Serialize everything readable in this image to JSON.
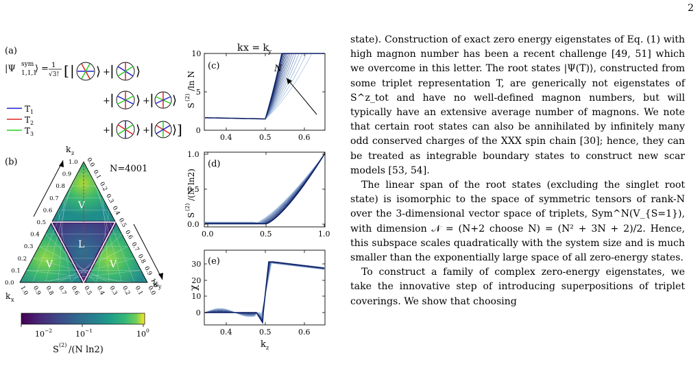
{
  "page_number": "2",
  "figure": {
    "panel_a": {
      "label": "(a)",
      "state_lhs": "|Ψ",
      "state_sup": "sym",
      "state_sub": "1,1,1",
      "state_rangle": "⟩",
      "prefactor_num": "1",
      "prefactor_den": "√3!",
      "legend": [
        {
          "label": "T",
          "sub": "1",
          "color": "#1f1fd0"
        },
        {
          "label": "T",
          "sub": "2",
          "color": "#e02020"
        },
        {
          "label": "T",
          "sub": "3",
          "color": "#20d020"
        }
      ]
    },
    "panel_b": {
      "label": "(b)",
      "n_label": "N=4001",
      "axis_kz": "k",
      "axis_kz_sub": "z",
      "axis_kx": "k",
      "axis_kx_sub": "x",
      "axis_ky": "k",
      "axis_ky_sub": "y",
      "region_labels": [
        "V",
        "L",
        "V",
        "V"
      ],
      "left_ticks": [
        "0.0",
        "0.1",
        "0.2",
        "0.3",
        "0.4",
        "0.5",
        "0.6",
        "0.7",
        "0.8",
        "0.9",
        "1.0"
      ],
      "right_ticks": [
        "0.0",
        "0.1",
        "0.2",
        "0.3",
        "0.4",
        "0.5",
        "0.6",
        "0.7",
        "0.8",
        "0.9",
        "1.0"
      ],
      "bottom_ticks": [
        "1.0",
        "0.9",
        "0.8",
        "0.7",
        "0.6",
        "0.5",
        "0.4",
        "0.3",
        "0.2",
        "0.1",
        "0.0"
      ],
      "colorbar_ticks": [
        "10",
        "10",
        "10"
      ],
      "colorbar_tick_exps": [
        "−2",
        "−1",
        "0"
      ],
      "colorbar_label": "S",
      "colorbar_label_sup": "(2)",
      "colorbar_label_tail": "/(N ln2)"
    },
    "panel_c": {
      "label": "(c)",
      "title": "k",
      "title_tail": "x = k",
      "title_sub": "y",
      "ylabel": "S",
      "ylabel_sup": "(2)",
      "ylabel_tail": "/ln N",
      "xticks": [
        "0.4",
        "0.5",
        "0.6"
      ],
      "yticks": [
        "0",
        "5",
        "10"
      ],
      "arrow_label": "N"
    },
    "panel_d": {
      "label": "(d)",
      "ylabel": "S",
      "ylabel_sup": "(2)",
      "ylabel_tail": "/(N ln2)",
      "xticks": [
        "0.0",
        "0.5",
        "1.0"
      ],
      "yticks": [
        "0.0",
        "0.5",
        "1.0"
      ]
    },
    "panel_e": {
      "label": "(e)",
      "ylabel": "χ",
      "xlabel": "k",
      "xlabel_sub": "z",
      "xticks": [
        "0.4",
        "0.5",
        "0.6"
      ],
      "yticks": [
        "0",
        "10",
        "20",
        "30"
      ]
    },
    "colors": {
      "dark_curve": "#0b1f66",
      "light_curve": "#a9c6e6",
      "viridis_dark": "#440154",
      "viridis_mid": "#21918c",
      "viridis_light": "#fde725"
    }
  },
  "text": {
    "p1": "state). Construction of exact zero energy eigenstates of Eq. (1) with high magnon number has been a recent challenge [49, 51] which we overcome in this letter. The root states |Ψ(T)⟩, constructed from some triplet representation T, are generically not eigenstates of S^z_tot and have no well-defined magnon numbers, but will typically have an extensive average number of magnons. We note that certain root states can also be annihilated by infinitely many odd conserved charges of the XXX spin chain [30]; hence, they can be treated as integrable boundary states to construct new scar models [53, 54].",
    "p2": "The linear span of the root states (excluding the singlet root state) is isomorphic to the space of symmetric tensors of rank-N over the 3-dimensional vector space of triplets, Sym^N(V_{S=1}), with dimension 𝒩 = (N+2 choose N) = (N² + 3N + 2)/2. Hence, this subspace scales quadratically with the system size and is much smaller than the exponentially large space of all zero-energy states.",
    "p3": "To construct a family of complex zero-energy eigenstates, we take the innovative step of introducing superpositions of triplet coverings. We show that choosing"
  }
}
